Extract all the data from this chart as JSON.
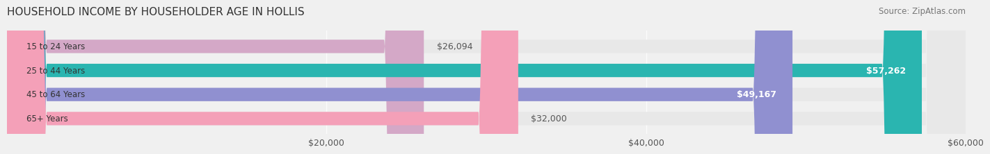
{
  "title": "HOUSEHOLD INCOME BY HOUSEHOLDER AGE IN HOLLIS",
  "source": "Source: ZipAtlas.com",
  "categories": [
    "15 to 24 Years",
    "25 to 44 Years",
    "45 to 64 Years",
    "65+ Years"
  ],
  "values": [
    26094,
    57262,
    49167,
    32000
  ],
  "bar_colors": [
    "#d4a8c7",
    "#2ab5b0",
    "#9090d0",
    "#f4a0b8"
  ],
  "bar_labels": [
    "$26,094",
    "$57,262",
    "$49,167",
    "$32,000"
  ],
  "label_inside": [
    false,
    true,
    true,
    false
  ],
  "xlim": [
    0,
    60000
  ],
  "xticks": [
    20000,
    40000,
    60000
  ],
  "xticklabels": [
    "$20,000",
    "$40,000",
    "$60,000"
  ],
  "bg_color": "#f0f0f0",
  "bar_bg_color": "#e8e8e8",
  "bar_height": 0.55,
  "title_fontsize": 11,
  "source_fontsize": 8.5,
  "label_fontsize": 9,
  "tick_fontsize": 9,
  "cat_fontsize": 8.5
}
